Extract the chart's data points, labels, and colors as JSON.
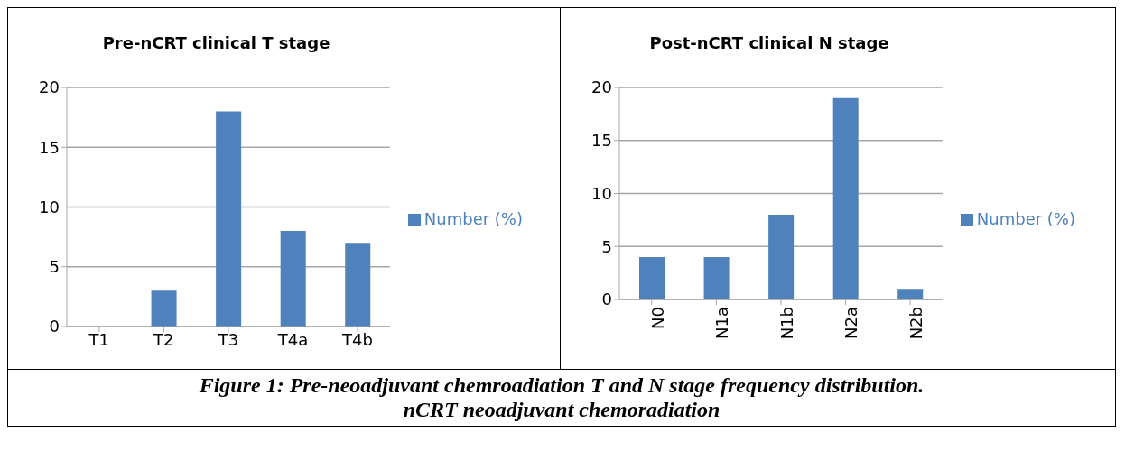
{
  "chart_data": [
    {
      "type": "bar",
      "title": "Pre-nCRT clinical T stage",
      "categories": [
        "T1",
        "T2",
        "T3",
        "T4a",
        "T4b"
      ],
      "series": [
        {
          "name": "Number (%)",
          "color": "#4f81bd",
          "values": [
            0,
            3,
            18,
            8,
            7
          ]
        }
      ],
      "ylim": [
        0,
        20
      ],
      "yticks": [
        0,
        5,
        10,
        15,
        20
      ],
      "grid": "y",
      "legend": "right"
    },
    {
      "type": "bar",
      "title": "Post-nCRT clinical N stage",
      "categories": [
        "N0",
        "N1a",
        "N1b",
        "N2a",
        "N2b"
      ],
      "series": [
        {
          "name": "Number (%)",
          "color": "#4f81bd",
          "values": [
            4,
            4,
            8,
            19,
            1
          ]
        }
      ],
      "ylim": [
        0,
        20
      ],
      "yticks": [
        0,
        5,
        10,
        15,
        20
      ],
      "grid": "y",
      "legend": "right",
      "annotations": [
        "Figure 1: Pre-neoadjuvant chemroadiation T and N stage frequency distribution.",
        "nCRT neoadjuvant chemoradiation"
      ]
    }
  ]
}
